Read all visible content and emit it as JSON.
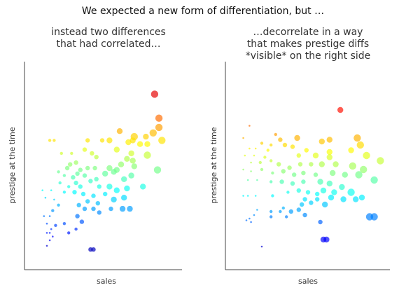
{
  "slide": {
    "title": "We expected a new form of differentiation, but …"
  },
  "panels": [
    {
      "title_lines": [
        "instead two differences",
        "that had correlated…"
      ]
    },
    {
      "title_lines": [
        "…decorrelate in a way",
        "that makes prestige diffs",
        "*visible* on the right side"
      ]
    }
  ],
  "chart_data": [
    {
      "type": "scatter",
      "title": "instead two differences that had correlated…",
      "xlabel": "sales",
      "ylabel": "prestige at the time",
      "xlim": [
        0,
        100
      ],
      "ylim": [
        0,
        100
      ],
      "ticks": "none",
      "grid": false,
      "color_encodes": "y value (blue = low prestige, red = high prestige)",
      "points": [
        {
          "x": 86,
          "y": 90,
          "s": 5
        },
        {
          "x": 89,
          "y": 77,
          "s": 5
        },
        {
          "x": 89,
          "y": 72,
          "s": 5
        },
        {
          "x": 85,
          "y": 69,
          "s": 5
        },
        {
          "x": 91,
          "y": 65,
          "s": 5
        },
        {
          "x": 81,
          "y": 63,
          "s": 4
        },
        {
          "x": 80,
          "y": 67,
          "s": 4
        },
        {
          "x": 72,
          "y": 67,
          "s": 5
        },
        {
          "x": 76,
          "y": 63,
          "s": 4
        },
        {
          "x": 62,
          "y": 70,
          "s": 4
        },
        {
          "x": 55,
          "y": 65,
          "s": 4
        },
        {
          "x": 68,
          "y": 64,
          "s": 4
        },
        {
          "x": 71,
          "y": 65,
          "s": 4
        },
        {
          "x": 14,
          "y": 65,
          "s": 2
        },
        {
          "x": 17,
          "y": 65,
          "s": 2
        },
        {
          "x": 40,
          "y": 65,
          "s": 3
        },
        {
          "x": 50,
          "y": 65,
          "s": 3
        },
        {
          "x": 22,
          "y": 58,
          "s": 2
        },
        {
          "x": 29,
          "y": 58,
          "s": 2
        },
        {
          "x": 38,
          "y": 60,
          "s": 3
        },
        {
          "x": 43,
          "y": 58,
          "s": 3
        },
        {
          "x": 46,
          "y": 56,
          "s": 3
        },
        {
          "x": 60,
          "y": 60,
          "s": 4
        },
        {
          "x": 70,
          "y": 58,
          "s": 4
        },
        {
          "x": 81,
          "y": 57,
          "s": 5
        },
        {
          "x": 67,
          "y": 55,
          "s": 4
        },
        {
          "x": 63,
          "y": 52,
          "s": 4
        },
        {
          "x": 71,
          "y": 54,
          "s": 4
        },
        {
          "x": 72,
          "y": 51,
          "s": 4
        },
        {
          "x": 32,
          "y": 53,
          "s": 3
        },
        {
          "x": 28,
          "y": 52,
          "s": 3
        },
        {
          "x": 26,
          "y": 50,
          "s": 3
        },
        {
          "x": 35,
          "y": 49,
          "s": 3
        },
        {
          "x": 40,
          "y": 50,
          "s": 3
        },
        {
          "x": 45,
          "y": 50,
          "s": 3
        },
        {
          "x": 55,
          "y": 50,
          "s": 4
        },
        {
          "x": 58,
          "y": 48,
          "s": 4
        },
        {
          "x": 60,
          "y": 49,
          "s": 4
        },
        {
          "x": 88,
          "y": 49,
          "s": 5
        },
        {
          "x": 20,
          "y": 48,
          "s": 2
        },
        {
          "x": 24,
          "y": 46,
          "s": 2
        },
        {
          "x": 30,
          "y": 45,
          "s": 3
        },
        {
          "x": 33,
          "y": 47,
          "s": 3
        },
        {
          "x": 38,
          "y": 46,
          "s": 3
        },
        {
          "x": 46,
          "y": 44,
          "s": 3
        },
        {
          "x": 52,
          "y": 47,
          "s": 4
        },
        {
          "x": 65,
          "y": 44,
          "s": 4
        },
        {
          "x": 70,
          "y": 46,
          "s": 4
        },
        {
          "x": 21,
          "y": 42,
          "s": 2
        },
        {
          "x": 27,
          "y": 40,
          "s": 2
        },
        {
          "x": 32,
          "y": 42,
          "s": 3
        },
        {
          "x": 35,
          "y": 40,
          "s": 3
        },
        {
          "x": 42,
          "y": 43,
          "s": 3
        },
        {
          "x": 48,
          "y": 40,
          "s": 3
        },
        {
          "x": 55,
          "y": 40,
          "s": 4
        },
        {
          "x": 60,
          "y": 38,
          "s": 4
        },
        {
          "x": 67,
          "y": 39,
          "s": 4
        },
        {
          "x": 78,
          "y": 40,
          "s": 4
        },
        {
          "x": 9,
          "y": 38,
          "s": 1
        },
        {
          "x": 15,
          "y": 38,
          "s": 1
        },
        {
          "x": 24,
          "y": 37,
          "s": 2
        },
        {
          "x": 31,
          "y": 37,
          "s": 3
        },
        {
          "x": 37,
          "y": 36,
          "s": 3
        },
        {
          "x": 44,
          "y": 35,
          "s": 3
        },
        {
          "x": 52,
          "y": 36,
          "s": 3
        },
        {
          "x": 11,
          "y": 34,
          "s": 1
        },
        {
          "x": 17,
          "y": 33,
          "s": 1
        },
        {
          "x": 40,
          "y": 32,
          "s": 3
        },
        {
          "x": 47,
          "y": 31,
          "s": 3
        },
        {
          "x": 58,
          "y": 33,
          "s": 4
        },
        {
          "x": 65,
          "y": 34,
          "s": 4
        },
        {
          "x": 20,
          "y": 30,
          "s": 2
        },
        {
          "x": 34,
          "y": 30,
          "s": 3
        },
        {
          "x": 16,
          "y": 27,
          "s": 2
        },
        {
          "x": 38,
          "y": 28,
          "s": 3
        },
        {
          "x": 44,
          "y": 28,
          "s": 3
        },
        {
          "x": 48,
          "y": 26,
          "s": 3
        },
        {
          "x": 56,
          "y": 28,
          "s": 3
        },
        {
          "x": 10,
          "y": 24,
          "s": 1
        },
        {
          "x": 14,
          "y": 24,
          "s": 1
        },
        {
          "x": 64,
          "y": 28,
          "s": 4
        },
        {
          "x": 69,
          "y": 28,
          "s": 4
        },
        {
          "x": 33,
          "y": 24,
          "s": 3
        },
        {
          "x": 24,
          "y": 20,
          "s": 2
        },
        {
          "x": 36,
          "y": 21,
          "s": 3
        },
        {
          "x": 12,
          "y": 20,
          "s": 1
        },
        {
          "x": 32,
          "y": 17,
          "s": 2
        },
        {
          "x": 14,
          "y": 15,
          "s": 1
        },
        {
          "x": 16,
          "y": 13,
          "s": 1
        },
        {
          "x": 14,
          "y": 11,
          "s": 1
        },
        {
          "x": 12,
          "y": 8,
          "s": 1
        },
        {
          "x": 42,
          "y": 6,
          "s": 3
        },
        {
          "x": 44,
          "y": 6,
          "s": 3
        },
        {
          "x": 15,
          "y": 17,
          "s": 1
        },
        {
          "x": 12,
          "y": 15,
          "s": 1
        },
        {
          "x": 18,
          "y": 19,
          "s": 2
        },
        {
          "x": 27,
          "y": 15,
          "s": 2
        }
      ]
    },
    {
      "type": "scatter",
      "title": "…decorrelate in a way that makes prestige diffs *visible* on the right side",
      "xlabel": "sales",
      "ylabel": "prestige at the time",
      "xlim": [
        0,
        100
      ],
      "ylim": [
        0,
        100
      ],
      "ticks": "none",
      "grid": false,
      "color_encodes": "y value (blue = low prestige, red = high prestige)",
      "points": [
        {
          "x": 71,
          "y": 86,
          "s": 4
        },
        {
          "x": 12,
          "y": 77,
          "s": 1
        },
        {
          "x": 29,
          "y": 72,
          "s": 2
        },
        {
          "x": 8,
          "y": 70,
          "s": 1
        },
        {
          "x": 43,
          "y": 70,
          "s": 4
        },
        {
          "x": 64,
          "y": 69,
          "s": 4
        },
        {
          "x": 32,
          "y": 69,
          "s": 3
        },
        {
          "x": 59,
          "y": 68,
          "s": 4
        },
        {
          "x": 82,
          "y": 70,
          "s": 5
        },
        {
          "x": 84,
          "y": 66,
          "s": 5
        },
        {
          "x": 20,
          "y": 67,
          "s": 2
        },
        {
          "x": 26,
          "y": 66,
          "s": 2
        },
        {
          "x": 35,
          "y": 66,
          "s": 3
        },
        {
          "x": 40,
          "y": 65,
          "s": 3
        },
        {
          "x": 12,
          "y": 64,
          "s": 1
        },
        {
          "x": 16,
          "y": 64,
          "s": 1
        },
        {
          "x": 24,
          "y": 63,
          "s": 2
        },
        {
          "x": 49,
          "y": 63,
          "s": 3
        },
        {
          "x": 64,
          "y": 62,
          "s": 4
        },
        {
          "x": 78,
          "y": 63,
          "s": 4
        },
        {
          "x": 9,
          "y": 60,
          "s": 1
        },
        {
          "x": 15,
          "y": 60,
          "s": 1
        },
        {
          "x": 22,
          "y": 59,
          "s": 2
        },
        {
          "x": 44,
          "y": 60,
          "s": 3
        },
        {
          "x": 55,
          "y": 60,
          "s": 4
        },
        {
          "x": 64,
          "y": 59,
          "s": 4
        },
        {
          "x": 88,
          "y": 60,
          "s": 5
        },
        {
          "x": 97,
          "y": 57,
          "s": 5
        },
        {
          "x": 13,
          "y": 56,
          "s": 1
        },
        {
          "x": 19,
          "y": 56,
          "s": 2
        },
        {
          "x": 26,
          "y": 57,
          "s": 2
        },
        {
          "x": 31,
          "y": 55,
          "s": 3
        },
        {
          "x": 38,
          "y": 53,
          "s": 3
        },
        {
          "x": 45,
          "y": 55,
          "s": 3
        },
        {
          "x": 52,
          "y": 55,
          "s": 3
        },
        {
          "x": 59,
          "y": 55,
          "s": 4
        },
        {
          "x": 68,
          "y": 55,
          "s": 4
        },
        {
          "x": 79,
          "y": 54,
          "s": 5
        },
        {
          "x": 86,
          "y": 52,
          "s": 5
        },
        {
          "x": 8,
          "y": 52,
          "s": 1
        },
        {
          "x": 13,
          "y": 51,
          "s": 1
        },
        {
          "x": 20,
          "y": 52,
          "s": 2
        },
        {
          "x": 27,
          "y": 50,
          "s": 2
        },
        {
          "x": 34,
          "y": 51,
          "s": 3
        },
        {
          "x": 41,
          "y": 49,
          "s": 3
        },
        {
          "x": 47,
          "y": 50,
          "s": 3
        },
        {
          "x": 55,
          "y": 49,
          "s": 3
        },
        {
          "x": 66,
          "y": 50,
          "s": 4
        },
        {
          "x": 74,
          "y": 49,
          "s": 4
        },
        {
          "x": 83,
          "y": 49,
          "s": 5
        },
        {
          "x": 93,
          "y": 46,
          "s": 5
        },
        {
          "x": 11,
          "y": 46,
          "s": 1
        },
        {
          "x": 17,
          "y": 46,
          "s": 1
        },
        {
          "x": 26,
          "y": 45,
          "s": 2
        },
        {
          "x": 33,
          "y": 45,
          "s": 3
        },
        {
          "x": 40,
          "y": 44,
          "s": 3
        },
        {
          "x": 47,
          "y": 45,
          "s": 3
        },
        {
          "x": 58,
          "y": 45,
          "s": 4
        },
        {
          "x": 64,
          "y": 44,
          "s": 4
        },
        {
          "x": 72,
          "y": 42,
          "s": 4
        },
        {
          "x": 37,
          "y": 39,
          "s": 2
        },
        {
          "x": 44,
          "y": 40,
          "s": 3
        },
        {
          "x": 50,
          "y": 39,
          "s": 3
        },
        {
          "x": 56,
          "y": 38,
          "s": 3
        },
        {
          "x": 60,
          "y": 40,
          "s": 4
        },
        {
          "x": 67,
          "y": 39,
          "s": 4
        },
        {
          "x": 78,
          "y": 39,
          "s": 5
        },
        {
          "x": 8,
          "y": 37,
          "s": 1
        },
        {
          "x": 11,
          "y": 37,
          "s": 1
        },
        {
          "x": 16,
          "y": 37,
          "s": 1
        },
        {
          "x": 27,
          "y": 37,
          "s": 2
        },
        {
          "x": 48,
          "y": 35,
          "s": 3
        },
        {
          "x": 56,
          "y": 35,
          "s": 3
        },
        {
          "x": 65,
          "y": 36,
          "s": 4
        },
        {
          "x": 73,
          "y": 35,
          "s": 4
        },
        {
          "x": 81,
          "y": 35,
          "s": 4
        },
        {
          "x": 85,
          "y": 36,
          "s": 4
        },
        {
          "x": 46,
          "y": 32,
          "s": 3
        },
        {
          "x": 52,
          "y": 33,
          "s": 3
        },
        {
          "x": 61,
          "y": 32,
          "s": 4
        },
        {
          "x": 34,
          "y": 30,
          "s": 2
        },
        {
          "x": 17,
          "y": 29,
          "s": 1
        },
        {
          "x": 26,
          "y": 28,
          "s": 2
        },
        {
          "x": 32,
          "y": 28,
          "s": 2
        },
        {
          "x": 39,
          "y": 28,
          "s": 3
        },
        {
          "x": 44,
          "y": 29,
          "s": 3
        },
        {
          "x": 15,
          "y": 26,
          "s": 1
        },
        {
          "x": 26,
          "y": 25,
          "s": 2
        },
        {
          "x": 36,
          "y": 25,
          "s": 2
        },
        {
          "x": 48,
          "y": 26,
          "s": 3
        },
        {
          "x": 90,
          "y": 25,
          "s": 5
        },
        {
          "x": 93,
          "y": 25,
          "s": 5
        },
        {
          "x": 12,
          "y": 24,
          "s": 1
        },
        {
          "x": 10,
          "y": 23,
          "s": 1
        },
        {
          "x": 13,
          "y": 22,
          "s": 1
        },
        {
          "x": 58,
          "y": 22,
          "s": 3
        },
        {
          "x": 60,
          "y": 12,
          "s": 4
        },
        {
          "x": 62,
          "y": 12,
          "s": 4
        },
        {
          "x": 20,
          "y": 8,
          "s": 1
        }
      ]
    }
  ]
}
